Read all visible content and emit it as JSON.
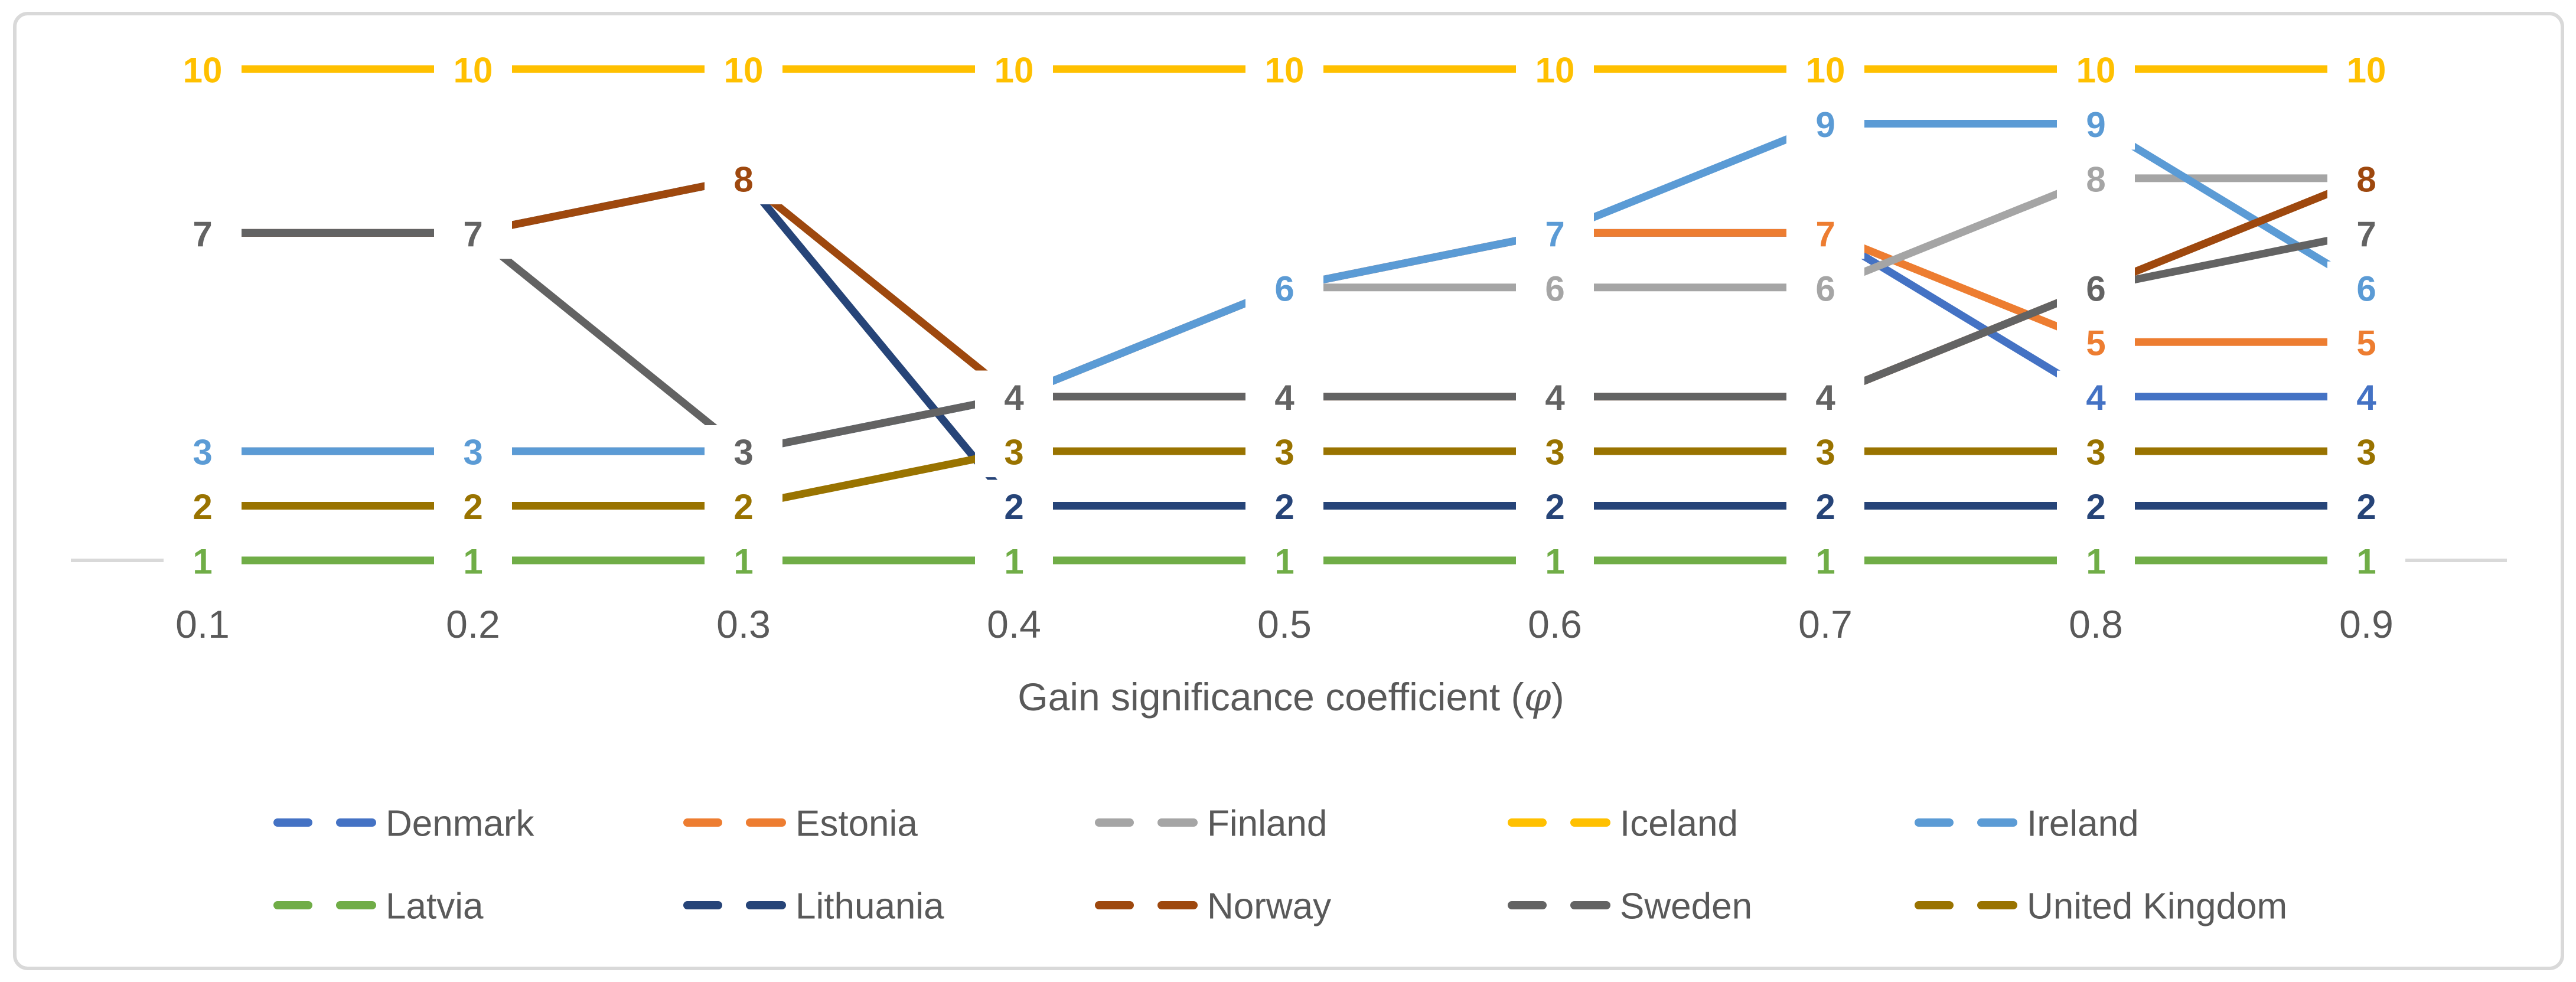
{
  "chart_data": {
    "type": "line",
    "title": "",
    "xlabel": "Gain significance coefficient (φ)",
    "xlabel_prefix": "Gain significance coefficient (",
    "xlabel_phi": "φ",
    "xlabel_suffix": ")",
    "ylabel": "",
    "categories": [
      "0.1",
      "0.2",
      "0.3",
      "0.4",
      "0.5",
      "0.6",
      "0.7",
      "0.8",
      "0.9"
    ],
    "x_values": [
      0.1,
      0.2,
      0.3,
      0.4,
      0.5,
      0.6,
      0.7,
      0.8,
      0.9
    ],
    "ylim": [
      1,
      10
    ],
    "grid": "single light horizontal gridline at rank 1",
    "legend_position": "bottom, two rows of five entries",
    "point_labels": "every point labeled with its rank value, bold, colored as its series, on white box",
    "series": [
      {
        "name": "Denmark",
        "color": "#4472C4",
        "values": [
          3,
          3,
          3,
          4,
          6,
          7,
          7,
          4,
          4
        ]
      },
      {
        "name": "Estonia",
        "color": "#ED7D31",
        "values": [
          3,
          3,
          3,
          4,
          6,
          7,
          7,
          5,
          5
        ]
      },
      {
        "name": "Finland",
        "color": "#A5A5A5",
        "values": [
          3,
          3,
          3,
          4,
          6,
          6,
          6,
          8,
          8
        ]
      },
      {
        "name": "Iceland",
        "color": "#FFC000",
        "values": [
          10,
          10,
          10,
          10,
          10,
          10,
          10,
          10,
          10
        ]
      },
      {
        "name": "Ireland",
        "color": "#5B9BD5",
        "values": [
          3,
          3,
          3,
          4,
          6,
          7,
          9,
          9,
          6
        ]
      },
      {
        "name": "Latvia",
        "color": "#70AD47",
        "values": [
          1,
          1,
          1,
          1,
          1,
          1,
          1,
          1,
          1
        ]
      },
      {
        "name": "Lithuania",
        "color": "#264478",
        "values": [
          7,
          7,
          8,
          2,
          2,
          2,
          2,
          2,
          2
        ]
      },
      {
        "name": "Norway",
        "color": "#9E480E",
        "values": [
          7,
          7,
          8,
          4,
          4,
          4,
          4,
          6,
          8
        ]
      },
      {
        "name": "Sweden",
        "color": "#636363",
        "values": [
          7,
          7,
          3,
          4,
          4,
          4,
          4,
          6,
          7
        ]
      },
      {
        "name": "United Kingdom",
        "color": "#997300",
        "values": [
          2,
          2,
          2,
          3,
          3,
          3,
          3,
          3,
          3
        ]
      }
    ],
    "colors": {
      "axis_text": "#595959",
      "gridline": "#D9D9D9",
      "chart_border": "#D9D9D9",
      "background": "#FFFFFF",
      "label_halo": "#FFFFFF"
    }
  }
}
